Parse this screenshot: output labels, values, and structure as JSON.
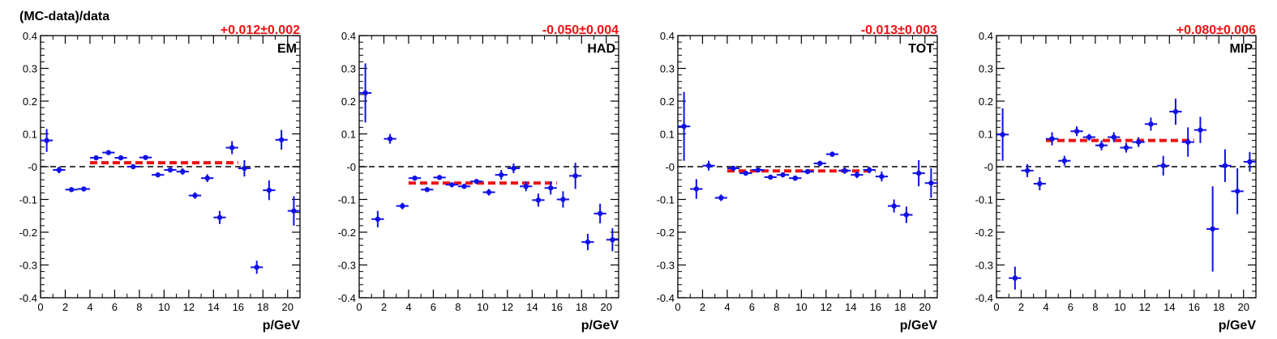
{
  "figure": {
    "ylabel": "(MC-data)/data",
    "colors": {
      "points": "#1010e6",
      "fit": "#ee1111",
      "frame": "#000000",
      "zero_line": "#000000"
    }
  },
  "chart_data": [
    {
      "type": "scatter",
      "panel_label": "EM",
      "fit_text": "+0.012±0.002",
      "fit": {
        "value": 0.012,
        "x_range": [
          4,
          16
        ]
      },
      "xlabel": "p/GeV",
      "xlim": [
        0,
        21
      ],
      "ylim": [
        -0.4,
        0.4
      ],
      "xticks": [
        "0",
        "2",
        "4",
        "6",
        "8",
        "10",
        "12",
        "14",
        "16",
        "18",
        "20"
      ],
      "yticks": [
        "-0.4",
        "-0.3",
        "-0.2",
        "-0.1",
        "-0",
        "0.1",
        "0.2",
        "0.3",
        "0.4"
      ],
      "series": [
        {
          "points": [
            {
              "x": 0.5,
              "y": 0.08,
              "ey": 0.035
            },
            {
              "x": 1.5,
              "y": -0.01,
              "ey": 0.01
            },
            {
              "x": 2.5,
              "y": -0.07,
              "ey": 0.005
            },
            {
              "x": 3.5,
              "y": -0.068,
              "ey": 0.005
            },
            {
              "x": 4.5,
              "y": 0.027,
              "ey": 0.005
            },
            {
              "x": 5.5,
              "y": 0.043,
              "ey": 0.005
            },
            {
              "x": 6.5,
              "y": 0.027,
              "ey": 0.005
            },
            {
              "x": 7.5,
              "y": 0.0,
              "ey": 0.005
            },
            {
              "x": 8.5,
              "y": 0.028,
              "ey": 0.005
            },
            {
              "x": 9.5,
              "y": -0.025,
              "ey": 0.005
            },
            {
              "x": 10.5,
              "y": -0.01,
              "ey": 0.005
            },
            {
              "x": 11.5,
              "y": -0.015,
              "ey": 0.01
            },
            {
              "x": 12.5,
              "y": -0.088,
              "ey": 0.01
            },
            {
              "x": 13.5,
              "y": -0.035,
              "ey": 0.012
            },
            {
              "x": 14.5,
              "y": -0.155,
              "ey": 0.02
            },
            {
              "x": 15.5,
              "y": 0.058,
              "ey": 0.02
            },
            {
              "x": 16.5,
              "y": -0.005,
              "ey": 0.025
            },
            {
              "x": 17.5,
              "y": -0.307,
              "ey": 0.02
            },
            {
              "x": 18.5,
              "y": -0.072,
              "ey": 0.03
            },
            {
              "x": 19.5,
              "y": 0.082,
              "ey": 0.03
            },
            {
              "x": 20.5,
              "y": -0.135,
              "ey": 0.045
            }
          ]
        }
      ]
    },
    {
      "type": "scatter",
      "panel_label": "HAD",
      "fit_text": "-0.050±0.004",
      "fit": {
        "value": -0.05,
        "x_range": [
          4,
          16
        ]
      },
      "xlabel": "p/GeV",
      "xlim": [
        0,
        21
      ],
      "ylim": [
        -0.4,
        0.4
      ],
      "xticks": [
        "0",
        "2",
        "4",
        "6",
        "8",
        "10",
        "12",
        "14",
        "16",
        "18",
        "20"
      ],
      "yticks": [
        "-0.4",
        "-0.3",
        "-0.2",
        "-0.1",
        "-0",
        "0.1",
        "0.2",
        "0.3",
        "0.4"
      ],
      "series": [
        {
          "points": [
            {
              "x": 0.5,
              "y": 0.225,
              "ey": 0.09
            },
            {
              "x": 1.5,
              "y": -0.16,
              "ey": 0.025
            },
            {
              "x": 2.5,
              "y": 0.085,
              "ey": 0.015
            },
            {
              "x": 3.5,
              "y": -0.12,
              "ey": 0.01
            },
            {
              "x": 4.5,
              "y": -0.035,
              "ey": 0.005
            },
            {
              "x": 5.5,
              "y": -0.07,
              "ey": 0.005
            },
            {
              "x": 6.5,
              "y": -0.033,
              "ey": 0.005
            },
            {
              "x": 7.5,
              "y": -0.055,
              "ey": 0.005
            },
            {
              "x": 8.5,
              "y": -0.06,
              "ey": 0.005
            },
            {
              "x": 9.5,
              "y": -0.045,
              "ey": 0.005
            },
            {
              "x": 10.5,
              "y": -0.078,
              "ey": 0.01
            },
            {
              "x": 11.5,
              "y": -0.025,
              "ey": 0.015
            },
            {
              "x": 12.5,
              "y": -0.005,
              "ey": 0.015
            },
            {
              "x": 13.5,
              "y": -0.06,
              "ey": 0.015
            },
            {
              "x": 14.5,
              "y": -0.102,
              "ey": 0.02
            },
            {
              "x": 15.5,
              "y": -0.065,
              "ey": 0.02
            },
            {
              "x": 16.5,
              "y": -0.1,
              "ey": 0.025
            },
            {
              "x": 17.5,
              "y": -0.028,
              "ey": 0.04
            },
            {
              "x": 18.5,
              "y": -0.23,
              "ey": 0.025
            },
            {
              "x": 19.5,
              "y": -0.143,
              "ey": 0.03
            },
            {
              "x": 20.5,
              "y": -0.223,
              "ey": 0.035
            }
          ]
        }
      ]
    },
    {
      "type": "scatter",
      "panel_label": "TOT",
      "fit_text": "-0.013±0.003",
      "fit": {
        "value": -0.013,
        "x_range": [
          4,
          16
        ]
      },
      "xlabel": "p/GeV",
      "xlim": [
        0,
        21
      ],
      "ylim": [
        -0.4,
        0.4
      ],
      "xticks": [
        "0",
        "2",
        "4",
        "6",
        "8",
        "10",
        "12",
        "14",
        "16",
        "18",
        "20"
      ],
      "yticks": [
        "-0.4",
        "-0.3",
        "-0.2",
        "-0.1",
        "-0",
        "0.1",
        "0.2",
        "0.3",
        "0.4"
      ],
      "series": [
        {
          "points": [
            {
              "x": 0.5,
              "y": 0.123,
              "ey": 0.105
            },
            {
              "x": 1.5,
              "y": -0.068,
              "ey": 0.03
            },
            {
              "x": 2.5,
              "y": 0.003,
              "ey": 0.015
            },
            {
              "x": 3.5,
              "y": -0.095,
              "ey": 0.01
            },
            {
              "x": 4.5,
              "y": -0.005,
              "ey": 0.005
            },
            {
              "x": 5.5,
              "y": -0.02,
              "ey": 0.005
            },
            {
              "x": 6.5,
              "y": -0.01,
              "ey": 0.005
            },
            {
              "x": 7.5,
              "y": -0.032,
              "ey": 0.005
            },
            {
              "x": 8.5,
              "y": -0.025,
              "ey": 0.005
            },
            {
              "x": 9.5,
              "y": -0.035,
              "ey": 0.008
            },
            {
              "x": 10.5,
              "y": -0.015,
              "ey": 0.005
            },
            {
              "x": 11.5,
              "y": 0.01,
              "ey": 0.008
            },
            {
              "x": 12.5,
              "y": 0.038,
              "ey": 0.008
            },
            {
              "x": 13.5,
              "y": -0.012,
              "ey": 0.01
            },
            {
              "x": 14.5,
              "y": -0.025,
              "ey": 0.01
            },
            {
              "x": 15.5,
              "y": -0.01,
              "ey": 0.01
            },
            {
              "x": 16.5,
              "y": -0.03,
              "ey": 0.015
            },
            {
              "x": 17.5,
              "y": -0.12,
              "ey": 0.02
            },
            {
              "x": 18.5,
              "y": -0.147,
              "ey": 0.025
            },
            {
              "x": 19.5,
              "y": -0.02,
              "ey": 0.04
            },
            {
              "x": 20.5,
              "y": -0.05,
              "ey": 0.045
            }
          ]
        }
      ]
    },
    {
      "type": "scatter",
      "panel_label": "MIP",
      "fit_text": "+0.080±0.006",
      "fit": {
        "value": 0.08,
        "x_range": [
          4,
          16
        ]
      },
      "xlabel": "p/GeV",
      "xlim": [
        0,
        21
      ],
      "ylim": [
        -0.4,
        0.4
      ],
      "xticks": [
        "0",
        "2",
        "4",
        "6",
        "8",
        "10",
        "12",
        "14",
        "16",
        "18",
        "20"
      ],
      "yticks": [
        "-0.4",
        "-0.3",
        "-0.2",
        "-0.1",
        "-0",
        "0.1",
        "0.2",
        "0.3",
        "0.4"
      ],
      "series": [
        {
          "points": [
            {
              "x": 0.5,
              "y": 0.098,
              "ey": 0.08
            },
            {
              "x": 1.5,
              "y": -0.34,
              "ey": 0.035
            },
            {
              "x": 2.5,
              "y": -0.012,
              "ey": 0.02
            },
            {
              "x": 3.5,
              "y": -0.052,
              "ey": 0.02
            },
            {
              "x": 4.5,
              "y": 0.085,
              "ey": 0.02
            },
            {
              "x": 5.5,
              "y": 0.018,
              "ey": 0.015
            },
            {
              "x": 6.5,
              "y": 0.108,
              "ey": 0.015
            },
            {
              "x": 7.5,
              "y": 0.09,
              "ey": 0.01
            },
            {
              "x": 8.5,
              "y": 0.065,
              "ey": 0.015
            },
            {
              "x": 9.5,
              "y": 0.09,
              "ey": 0.015
            },
            {
              "x": 10.5,
              "y": 0.058,
              "ey": 0.015
            },
            {
              "x": 11.5,
              "y": 0.075,
              "ey": 0.015
            },
            {
              "x": 12.5,
              "y": 0.13,
              "ey": 0.02
            },
            {
              "x": 13.5,
              "y": 0.003,
              "ey": 0.03
            },
            {
              "x": 14.5,
              "y": 0.168,
              "ey": 0.04
            },
            {
              "x": 15.5,
              "y": 0.075,
              "ey": 0.045
            },
            {
              "x": 16.5,
              "y": 0.112,
              "ey": 0.04
            },
            {
              "x": 17.5,
              "y": -0.19,
              "ey": 0.13
            },
            {
              "x": 18.5,
              "y": 0.003,
              "ey": 0.05
            },
            {
              "x": 19.5,
              "y": -0.075,
              "ey": 0.07
            },
            {
              "x": 20.5,
              "y": 0.015,
              "ey": 0.03
            }
          ]
        }
      ]
    }
  ]
}
